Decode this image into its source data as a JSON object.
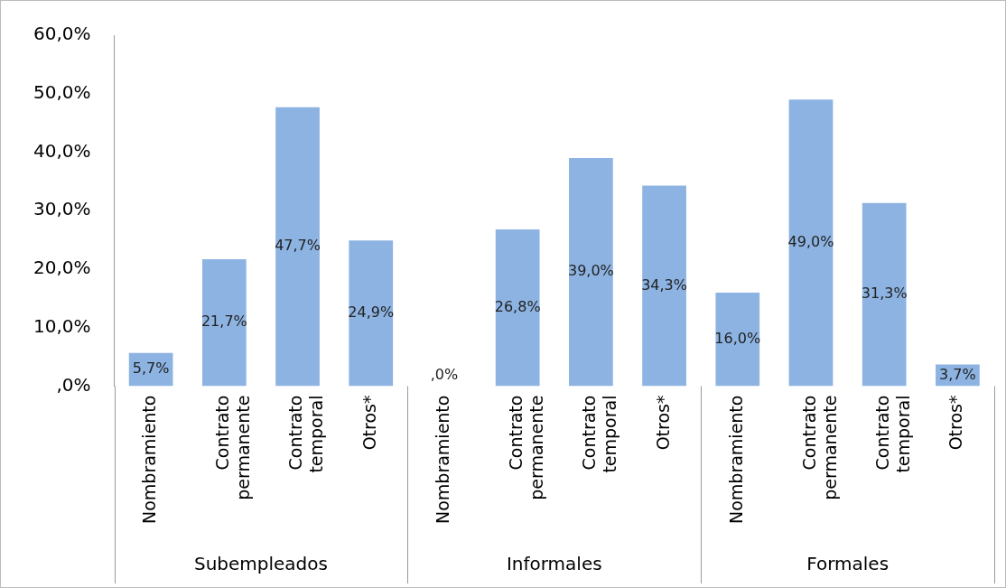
{
  "chart_data": {
    "type": "bar",
    "categories": [
      "Nombramiento",
      "Contrato permanente",
      "Contrato temporal",
      "Otros*",
      "Nombramiento",
      "Contrato permanente",
      "Contrato temporal",
      "Otros*",
      "Nombramiento",
      "Contrato permanente",
      "Contrato temporal",
      "Otros*"
    ],
    "values": [
      5.7,
      21.7,
      47.7,
      24.9,
      0,
      26.8,
      39.0,
      34.3,
      16.0,
      49.0,
      31.3,
      3.7
    ],
    "value_labels": [
      "5,7%",
      "21,7%",
      "47,7%",
      "24,9%",
      ",0%",
      "26,8%",
      "39,0%",
      "34,3%",
      "16,0%",
      "49,0%",
      "31,3%",
      "3,7%"
    ],
    "color": "#8db3e2",
    "ylim": [
      0,
      60
    ],
    "yticks": [
      {
        "value": 0,
        "label": ",0%"
      },
      {
        "value": 10,
        "label": "10,0%"
      },
      {
        "value": 20,
        "label": "20,0%"
      },
      {
        "value": 30,
        "label": "30,0%"
      },
      {
        "value": 40,
        "label": "40,0%"
      },
      {
        "value": 50,
        "label": "50,0%"
      },
      {
        "value": 60,
        "label": "60,0%"
      }
    ],
    "annotations": [
      "Subempleados",
      "Informales",
      "Formales"
    ],
    "grid": false,
    "legend": false
  }
}
